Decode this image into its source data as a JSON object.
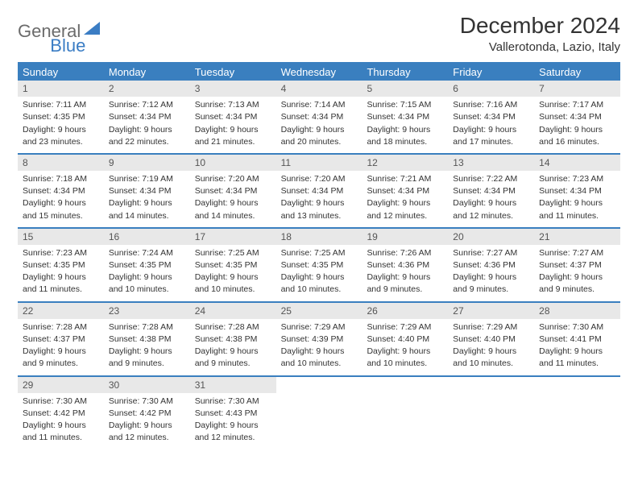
{
  "logo": {
    "part1": "General",
    "part2": "Blue"
  },
  "title": "December 2024",
  "location": "Vallerotonda, Lazio, Italy",
  "colors": {
    "header_bg": "#3a7fbf",
    "header_text": "#ffffff",
    "daynum_bg": "#e8e8e8",
    "border": "#3a7fbf",
    "logo_gray": "#6b6b6b",
    "logo_blue": "#3b7dc4"
  },
  "weekdays": [
    "Sunday",
    "Monday",
    "Tuesday",
    "Wednesday",
    "Thursday",
    "Friday",
    "Saturday"
  ],
  "days": [
    {
      "n": "1",
      "sunrise": "Sunrise: 7:11 AM",
      "sunset": "Sunset: 4:35 PM",
      "daylight1": "Daylight: 9 hours",
      "daylight2": "and 23 minutes."
    },
    {
      "n": "2",
      "sunrise": "Sunrise: 7:12 AM",
      "sunset": "Sunset: 4:34 PM",
      "daylight1": "Daylight: 9 hours",
      "daylight2": "and 22 minutes."
    },
    {
      "n": "3",
      "sunrise": "Sunrise: 7:13 AM",
      "sunset": "Sunset: 4:34 PM",
      "daylight1": "Daylight: 9 hours",
      "daylight2": "and 21 minutes."
    },
    {
      "n": "4",
      "sunrise": "Sunrise: 7:14 AM",
      "sunset": "Sunset: 4:34 PM",
      "daylight1": "Daylight: 9 hours",
      "daylight2": "and 20 minutes."
    },
    {
      "n": "5",
      "sunrise": "Sunrise: 7:15 AM",
      "sunset": "Sunset: 4:34 PM",
      "daylight1": "Daylight: 9 hours",
      "daylight2": "and 18 minutes."
    },
    {
      "n": "6",
      "sunrise": "Sunrise: 7:16 AM",
      "sunset": "Sunset: 4:34 PM",
      "daylight1": "Daylight: 9 hours",
      "daylight2": "and 17 minutes."
    },
    {
      "n": "7",
      "sunrise": "Sunrise: 7:17 AM",
      "sunset": "Sunset: 4:34 PM",
      "daylight1": "Daylight: 9 hours",
      "daylight2": "and 16 minutes."
    },
    {
      "n": "8",
      "sunrise": "Sunrise: 7:18 AM",
      "sunset": "Sunset: 4:34 PM",
      "daylight1": "Daylight: 9 hours",
      "daylight2": "and 15 minutes."
    },
    {
      "n": "9",
      "sunrise": "Sunrise: 7:19 AM",
      "sunset": "Sunset: 4:34 PM",
      "daylight1": "Daylight: 9 hours",
      "daylight2": "and 14 minutes."
    },
    {
      "n": "10",
      "sunrise": "Sunrise: 7:20 AM",
      "sunset": "Sunset: 4:34 PM",
      "daylight1": "Daylight: 9 hours",
      "daylight2": "and 14 minutes."
    },
    {
      "n": "11",
      "sunrise": "Sunrise: 7:20 AM",
      "sunset": "Sunset: 4:34 PM",
      "daylight1": "Daylight: 9 hours",
      "daylight2": "and 13 minutes."
    },
    {
      "n": "12",
      "sunrise": "Sunrise: 7:21 AM",
      "sunset": "Sunset: 4:34 PM",
      "daylight1": "Daylight: 9 hours",
      "daylight2": "and 12 minutes."
    },
    {
      "n": "13",
      "sunrise": "Sunrise: 7:22 AM",
      "sunset": "Sunset: 4:34 PM",
      "daylight1": "Daylight: 9 hours",
      "daylight2": "and 12 minutes."
    },
    {
      "n": "14",
      "sunrise": "Sunrise: 7:23 AM",
      "sunset": "Sunset: 4:34 PM",
      "daylight1": "Daylight: 9 hours",
      "daylight2": "and 11 minutes."
    },
    {
      "n": "15",
      "sunrise": "Sunrise: 7:23 AM",
      "sunset": "Sunset: 4:35 PM",
      "daylight1": "Daylight: 9 hours",
      "daylight2": "and 11 minutes."
    },
    {
      "n": "16",
      "sunrise": "Sunrise: 7:24 AM",
      "sunset": "Sunset: 4:35 PM",
      "daylight1": "Daylight: 9 hours",
      "daylight2": "and 10 minutes."
    },
    {
      "n": "17",
      "sunrise": "Sunrise: 7:25 AM",
      "sunset": "Sunset: 4:35 PM",
      "daylight1": "Daylight: 9 hours",
      "daylight2": "and 10 minutes."
    },
    {
      "n": "18",
      "sunrise": "Sunrise: 7:25 AM",
      "sunset": "Sunset: 4:35 PM",
      "daylight1": "Daylight: 9 hours",
      "daylight2": "and 10 minutes."
    },
    {
      "n": "19",
      "sunrise": "Sunrise: 7:26 AM",
      "sunset": "Sunset: 4:36 PM",
      "daylight1": "Daylight: 9 hours",
      "daylight2": "and 9 minutes."
    },
    {
      "n": "20",
      "sunrise": "Sunrise: 7:27 AM",
      "sunset": "Sunset: 4:36 PM",
      "daylight1": "Daylight: 9 hours",
      "daylight2": "and 9 minutes."
    },
    {
      "n": "21",
      "sunrise": "Sunrise: 7:27 AM",
      "sunset": "Sunset: 4:37 PM",
      "daylight1": "Daylight: 9 hours",
      "daylight2": "and 9 minutes."
    },
    {
      "n": "22",
      "sunrise": "Sunrise: 7:28 AM",
      "sunset": "Sunset: 4:37 PM",
      "daylight1": "Daylight: 9 hours",
      "daylight2": "and 9 minutes."
    },
    {
      "n": "23",
      "sunrise": "Sunrise: 7:28 AM",
      "sunset": "Sunset: 4:38 PM",
      "daylight1": "Daylight: 9 hours",
      "daylight2": "and 9 minutes."
    },
    {
      "n": "24",
      "sunrise": "Sunrise: 7:28 AM",
      "sunset": "Sunset: 4:38 PM",
      "daylight1": "Daylight: 9 hours",
      "daylight2": "and 9 minutes."
    },
    {
      "n": "25",
      "sunrise": "Sunrise: 7:29 AM",
      "sunset": "Sunset: 4:39 PM",
      "daylight1": "Daylight: 9 hours",
      "daylight2": "and 10 minutes."
    },
    {
      "n": "26",
      "sunrise": "Sunrise: 7:29 AM",
      "sunset": "Sunset: 4:40 PM",
      "daylight1": "Daylight: 9 hours",
      "daylight2": "and 10 minutes."
    },
    {
      "n": "27",
      "sunrise": "Sunrise: 7:29 AM",
      "sunset": "Sunset: 4:40 PM",
      "daylight1": "Daylight: 9 hours",
      "daylight2": "and 10 minutes."
    },
    {
      "n": "28",
      "sunrise": "Sunrise: 7:30 AM",
      "sunset": "Sunset: 4:41 PM",
      "daylight1": "Daylight: 9 hours",
      "daylight2": "and 11 minutes."
    },
    {
      "n": "29",
      "sunrise": "Sunrise: 7:30 AM",
      "sunset": "Sunset: 4:42 PM",
      "daylight1": "Daylight: 9 hours",
      "daylight2": "and 11 minutes."
    },
    {
      "n": "30",
      "sunrise": "Sunrise: 7:30 AM",
      "sunset": "Sunset: 4:42 PM",
      "daylight1": "Daylight: 9 hours",
      "daylight2": "and 12 minutes."
    },
    {
      "n": "31",
      "sunrise": "Sunrise: 7:30 AM",
      "sunset": "Sunset: 4:43 PM",
      "daylight1": "Daylight: 9 hours",
      "daylight2": "and 12 minutes."
    }
  ],
  "start_weekday": 0,
  "font": {
    "day_body_size": 10.5,
    "weekday_size": 13,
    "title_size": 28,
    "location_size": 15
  }
}
